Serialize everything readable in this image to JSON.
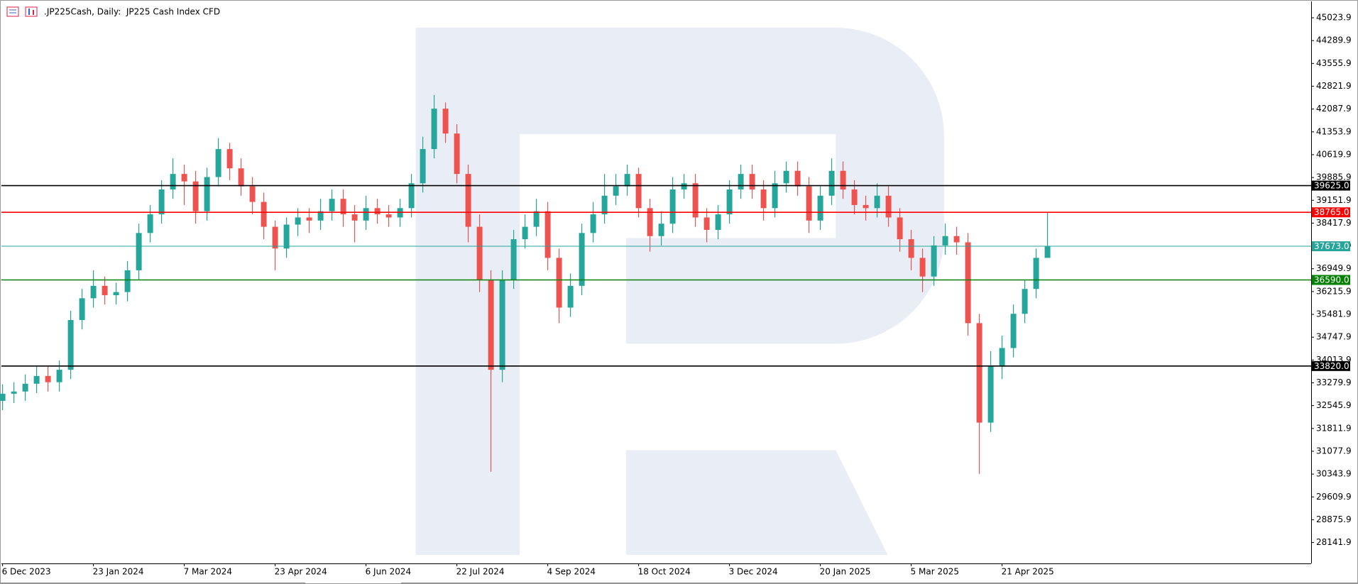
{
  "chart_data": {
    "type": "candlestick",
    "title": ".JP225Cash, Daily:  JP225 Cash Index CFD",
    "up_color": "#26a69a",
    "down_color": "#ef5350",
    "grid": false,
    "categories": [
      "6 Dec 2023",
      null,
      null,
      null,
      null,
      null,
      null,
      null,
      "23 Jan 2024",
      null,
      null,
      null,
      null,
      null,
      null,
      null,
      "7 Mar 2024",
      null,
      null,
      null,
      null,
      null,
      null,
      null,
      "23 Apr 2024",
      null,
      null,
      null,
      null,
      null,
      null,
      null,
      "6 Jun 2024",
      null,
      null,
      null,
      null,
      null,
      null,
      null,
      "22 Jul 2024",
      null,
      null,
      null,
      null,
      null,
      null,
      null,
      "4 Sep 2024",
      null,
      null,
      null,
      null,
      null,
      null,
      null,
      "18 Oct 2024",
      null,
      null,
      null,
      null,
      null,
      null,
      null,
      "3 Dec 2024",
      null,
      null,
      null,
      null,
      null,
      null,
      null,
      "20 Jan 2025",
      null,
      null,
      null,
      null,
      null,
      null,
      null,
      "5 Mar 2025",
      null,
      null,
      null,
      null,
      null,
      null,
      null,
      "21 Apr 2025",
      null,
      null,
      null,
      null
    ],
    "open": [
      32700,
      32930,
      33000,
      33250,
      33500,
      33300,
      33700,
      35300,
      36000,
      36400,
      36100,
      36200,
      36900,
      38100,
      38700,
      39500,
      40000,
      39760,
      38800,
      39900,
      40800,
      40180,
      39600,
      39100,
      38300,
      37600,
      38370,
      38600,
      38500,
      38800,
      39200,
      38700,
      38500,
      38900,
      38700,
      38600,
      38900,
      39700,
      40800,
      42100,
      41300,
      40000,
      38300,
      36600,
      33700,
      36600,
      37900,
      38300,
      38800,
      37300,
      35700,
      36400,
      38100,
      38700,
      39300,
      39600,
      40000,
      38900,
      38000,
      38400,
      39500,
      39700,
      38600,
      38200,
      38700,
      39500,
      40000,
      39500,
      38900,
      39700,
      40100,
      39600,
      38500,
      39300,
      40100,
      39500,
      39000,
      38900,
      39300,
      38600,
      37900,
      37300,
      36700,
      37700,
      38000,
      37800,
      35200,
      32000,
      33800,
      34400,
      35500,
      36300,
      37300
    ],
    "high": [
      33230,
      33300,
      33550,
      33800,
      33800,
      34000,
      35600,
      36300,
      36900,
      36700,
      36500,
      37200,
      38400,
      39000,
      39800,
      40500,
      40300,
      40100,
      40200,
      41150,
      41000,
      40500,
      39900,
      39400,
      38500,
      38600,
      38900,
      38900,
      39200,
      39500,
      39500,
      39000,
      39300,
      39200,
      39000,
      39200,
      40000,
      41200,
      42540,
      42300,
      41600,
      40300,
      38700,
      36900,
      36900,
      38200,
      38700,
      39200,
      39100,
      37600,
      36800,
      38400,
      39100,
      40000,
      40000,
      40300,
      40200,
      39200,
      38800,
      39900,
      40000,
      40000,
      38900,
      39000,
      39800,
      40300,
      40300,
      39800,
      40100,
      40400,
      40400,
      39900,
      39600,
      40500,
      40400,
      39800,
      39300,
      39700,
      39600,
      38900,
      38200,
      37600,
      38000,
      38400,
      38300,
      38100,
      35500,
      34300,
      34800,
      35800,
      36600,
      37600,
      38780
    ],
    "low": [
      32400,
      32630,
      32700,
      32950,
      33000,
      33000,
      33400,
      35000,
      35700,
      35800,
      35800,
      35900,
      36600,
      37800,
      38400,
      39200,
      39000,
      38400,
      38500,
      39600,
      39800,
      39300,
      38700,
      37900,
      36900,
      37300,
      38000,
      38100,
      38200,
      38500,
      38300,
      37800,
      38200,
      38400,
      38300,
      38300,
      38600,
      39400,
      40500,
      41000,
      39700,
      37800,
      36200,
      30420,
      33300,
      36300,
      37600,
      38000,
      36900,
      35200,
      35400,
      36100,
      37800,
      38400,
      39000,
      39300,
      38600,
      37500,
      37700,
      38100,
      39200,
      38300,
      37800,
      37900,
      38400,
      39200,
      39200,
      38500,
      38600,
      39400,
      39300,
      38100,
      38200,
      39000,
      39200,
      38700,
      38500,
      38600,
      38300,
      37500,
      36900,
      36200,
      36400,
      37400,
      37400,
      34800,
      30350,
      31700,
      33400,
      34100,
      35200,
      36000,
      37400
    ],
    "close": [
      32930,
      33000,
      33250,
      33500,
      33300,
      33700,
      35300,
      36000,
      36400,
      36100,
      36200,
      36900,
      38100,
      38700,
      39500,
      40000,
      39760,
      38800,
      39900,
      40800,
      40180,
      39600,
      39100,
      38300,
      37600,
      38370,
      38600,
      38500,
      38800,
      39200,
      38700,
      38500,
      38900,
      38700,
      38600,
      38900,
      39700,
      40800,
      42100,
      41300,
      40000,
      38300,
      36600,
      33700,
      36600,
      37900,
      38300,
      38800,
      37300,
      35700,
      36400,
      38100,
      38700,
      39300,
      39600,
      40000,
      38900,
      38000,
      38400,
      39500,
      39700,
      38600,
      38200,
      38700,
      39500,
      40000,
      39500,
      38900,
      39700,
      40100,
      39600,
      38500,
      39300,
      40100,
      39500,
      39000,
      38900,
      39300,
      38600,
      37900,
      37300,
      36700,
      37700,
      38000,
      37800,
      35200,
      32000,
      33800,
      34400,
      35500,
      36300,
      37300,
      37673
    ],
    "ylim": [
      27470,
      45550
    ],
    "yticks": [
      45023.9,
      44289.9,
      43555.9,
      42821.9,
      42087.9,
      41353.9,
      40619.9,
      39885.9,
      39151.9,
      38417.9,
      37683.9,
      36949.9,
      36215.9,
      35481.9,
      34747.9,
      34013.9,
      33279.9,
      32545.9,
      31811.9,
      31077.9,
      30343.9,
      29609.9,
      28875.9,
      28141.9
    ],
    "levels": [
      {
        "value": 39625,
        "label": "39625.0",
        "color": "#000000"
      },
      {
        "value": 38765,
        "label": "38765.0",
        "color": "#ff0000"
      },
      {
        "value": 37673,
        "label": "37673.0",
        "color": "#26a69a"
      },
      {
        "value": 36590,
        "label": "36590.0",
        "color": "#008000"
      },
      {
        "value": 33820,
        "label": "33820.0",
        "color": "#000000"
      }
    ]
  }
}
